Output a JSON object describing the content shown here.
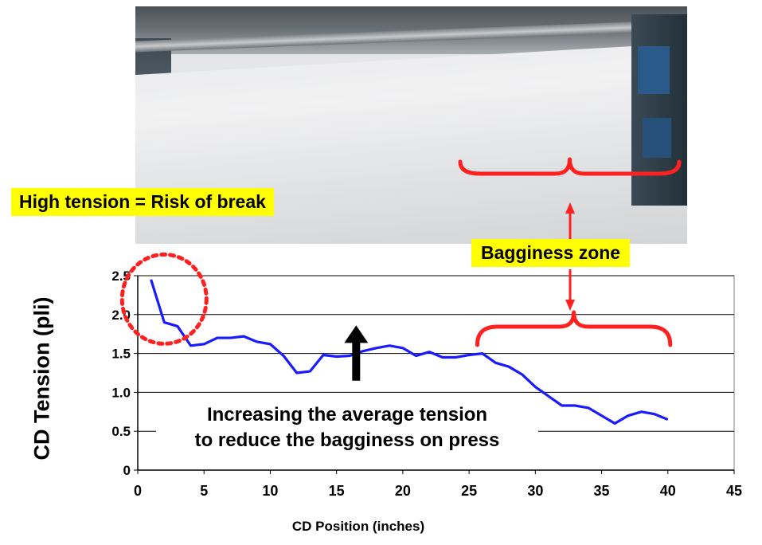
{
  "callouts": {
    "high_tension": "High tension = Risk of break",
    "bagginess_zone": "Bagginess zone"
  },
  "annotation": {
    "line1": "Increasing the average tension",
    "line2": "to reduce the bagginess on press"
  },
  "colors": {
    "series_line": "#1a1aff",
    "highlight_red": "#ff2020",
    "callout_yellow": "#ffff00",
    "arrow_black": "#000000"
  },
  "chart_data": {
    "type": "line",
    "title": "",
    "xlabel": "CD Position (inches)",
    "ylabel": "CD Tension (pli)",
    "xlim": [
      0,
      45
    ],
    "ylim": [
      0,
      2.5
    ],
    "x_ticks": [
      0,
      5,
      10,
      15,
      20,
      25,
      30,
      35,
      40,
      45
    ],
    "y_ticks": [
      0,
      0.5,
      1.0,
      1.5,
      2.0,
      2.5
    ],
    "x_tick_labels": [
      "0",
      "5",
      "10",
      "15",
      "20",
      "25",
      "30",
      "35",
      "40",
      "45"
    ],
    "y_tick_labels": [
      "0",
      "0.5",
      "1.0",
      "1.5",
      "2.0",
      "2.5"
    ],
    "gridlines": "horizontal",
    "series": [
      {
        "name": "CD Tension",
        "x": [
          1,
          2,
          3,
          4,
          5,
          6,
          7,
          8,
          9,
          10,
          11,
          12,
          13,
          14,
          15,
          16,
          17,
          18,
          19,
          20,
          21,
          22,
          23,
          24,
          25,
          26,
          27,
          28,
          29,
          30,
          31,
          32,
          33,
          34,
          35,
          36,
          37,
          38,
          39,
          40
        ],
        "values": [
          2.45,
          1.9,
          1.85,
          1.6,
          1.62,
          1.7,
          1.7,
          1.72,
          1.65,
          1.62,
          1.47,
          1.25,
          1.27,
          1.48,
          1.46,
          1.47,
          1.53,
          1.57,
          1.6,
          1.57,
          1.47,
          1.52,
          1.45,
          1.45,
          1.48,
          1.5,
          1.38,
          1.33,
          1.23,
          1.07,
          0.95,
          0.83,
          0.83,
          0.8,
          0.7,
          0.6,
          0.7,
          0.75,
          0.72,
          0.65
        ]
      }
    ],
    "highlights": {
      "high_tension_circle_center": [
        2,
        2.25
      ],
      "bagginess_range": [
        25.5,
        40
      ]
    },
    "arrow_up_at": [
      16,
      1.15,
      1.8
    ]
  }
}
